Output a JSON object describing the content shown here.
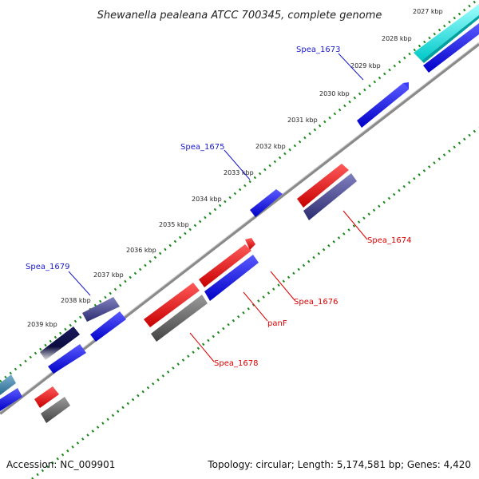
{
  "title": "Shewanella pealeana ATCC 700345, complete genome",
  "footer": {
    "accession": "Accession: NC_009901",
    "stats": "Topology: circular; Length: 5,174,581 bp; Genes: 4,420"
  },
  "ticks": [
    "2027 kbp",
    "2028 kbp",
    "2029 kbp",
    "2030 kbp",
    "2031 kbp",
    "2032 kbp",
    "2033 kbp",
    "2034 kbp",
    "2035 kbp",
    "2036 kbp",
    "2037 kbp",
    "2038 kbp",
    "2039 kbp"
  ],
  "gene_labels": {
    "spea_1673": "Spea_1673",
    "spea_1674": "Spea_1674",
    "spea_1675": "Spea_1675",
    "spea_1676": "Spea_1676",
    "panf": "panF",
    "spea_1678": "Spea_1678",
    "spea_1679": "Spea_1679"
  },
  "colors": {
    "forward_cds": "#0000ee",
    "reverse_cds": "#ee0000",
    "cyan_feature": "#00e5e5",
    "slate_feature": "#44448a",
    "gray_feature": "#666666",
    "backbone": "#888888",
    "tick_green": "#1a8a1a"
  }
}
